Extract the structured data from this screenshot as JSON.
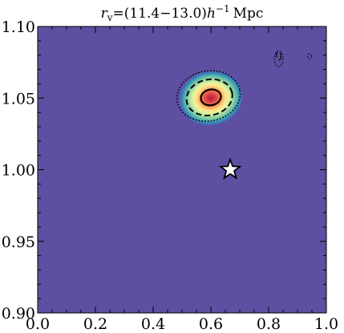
{
  "chart_data": {
    "type": "heatmap",
    "title_parts": {
      "symbol": "r",
      "subscript": "v",
      "equals_range": "=(11.4−13.0)",
      "h": "h",
      "exponent": "−1",
      "unit": "Mpc"
    },
    "xlabel": "",
    "ylabel": "",
    "xlim": [
      0.0,
      1.0
    ],
    "ylim": [
      0.9,
      1.1
    ],
    "x_ticks": [
      "0.0",
      "0.2",
      "0.4",
      "0.6",
      "0.8",
      "1.0"
    ],
    "y_ticks": [
      "0.90",
      "0.95",
      "1.00",
      "1.05",
      "1.10"
    ],
    "background_color": "#5e4fa2",
    "colormap": "Spectral_r",
    "peak": {
      "x": 0.6,
      "y": 1.05
    },
    "contours": [
      {
        "level": "inner",
        "style": "solid",
        "center": [
          0.6,
          1.0505
        ],
        "rx": 0.035,
        "ry": 0.0055,
        "rotation_deg": -12
      },
      {
        "level": "middle",
        "style": "dashed",
        "center": [
          0.595,
          1.0505
        ],
        "rx": 0.08,
        "ry": 0.0125,
        "rotation_deg": -12
      },
      {
        "level": "outer",
        "style": "dotted",
        "center": [
          0.592,
          1.0515
        ],
        "rx": 0.11,
        "ry": 0.0175,
        "rotation_deg": -10
      }
    ],
    "minor_contours": [
      {
        "style": "dashed",
        "center": [
          0.835,
          1.0795
        ],
        "rx": 0.008,
        "ry": 0.003
      },
      {
        "style": "dotted",
        "center": [
          0.835,
          1.0775
        ],
        "rx": 0.015,
        "ry": 0.0055
      },
      {
        "style": "dotted",
        "center": [
          0.942,
          1.079
        ],
        "rx": 0.007,
        "ry": 0.0018
      }
    ],
    "marker": {
      "shape": "star",
      "x": 0.667,
      "y": 1.0,
      "fill": "#ffffff",
      "edge": "#000000"
    },
    "grid": false,
    "legend": "none"
  }
}
